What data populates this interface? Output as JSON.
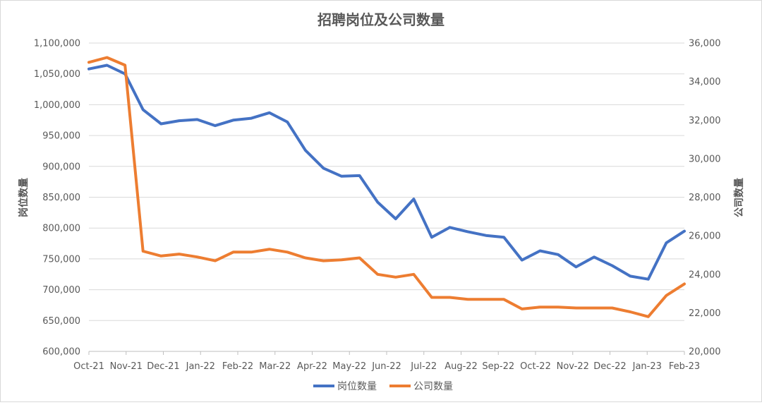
{
  "chart_data": {
    "type": "line",
    "title": "招聘岗位及公司数量",
    "ylabel_left": "岗位数量",
    "ylabel_right": "公司数量",
    "ylim_left": [
      600000,
      1100000
    ],
    "ylim_right": [
      20000,
      36000
    ],
    "y_ticks_left": [
      "600,000",
      "650,000",
      "700,000",
      "750,000",
      "800,000",
      "850,000",
      "900,000",
      "950,000",
      "1,000,000",
      "1,050,000",
      "1,100,000"
    ],
    "y_ticks_right": [
      "20,000",
      "22,000",
      "24,000",
      "26,000",
      "28,000",
      "30,000",
      "32,000",
      "34,000",
      "36,000"
    ],
    "x_ticks": [
      "Oct-21",
      "Nov-21",
      "Dec-21",
      "Jan-22",
      "Feb-22",
      "Mar-22",
      "Apr-22",
      "May-22",
      "Jun-22",
      "Jul-22",
      "Aug-22",
      "Sep-22",
      "Oct-22",
      "Nov-22",
      "Dec-22",
      "Jan-23",
      "Feb-23"
    ],
    "grid": true,
    "legend_position": "bottom",
    "series": [
      {
        "name": "岗位数量",
        "axis": "left",
        "color": "#4472C4",
        "values": [
          1058000,
          1064000,
          1050000,
          992000,
          969000,
          974000,
          976000,
          966000,
          975000,
          978000,
          987000,
          972000,
          926000,
          897000,
          884000,
          885000,
          842000,
          815000,
          847000,
          785000,
          801000,
          794000,
          788000,
          785000,
          748000,
          763000,
          757000,
          737000,
          753000,
          739000,
          722000,
          717000,
          776000,
          795000
        ]
      },
      {
        "name": "公司数量",
        "axis": "right",
        "color": "#ED7D31",
        "values": [
          35000,
          35250,
          34850,
          25200,
          24950,
          25050,
          24900,
          24700,
          25150,
          25150,
          25300,
          25150,
          24850,
          24700,
          24750,
          24850,
          24000,
          23850,
          24000,
          22800,
          22800,
          22700,
          22700,
          22700,
          22200,
          22300,
          22300,
          22250,
          22250,
          22250,
          22050,
          21800,
          22900,
          23500
        ]
      }
    ]
  }
}
